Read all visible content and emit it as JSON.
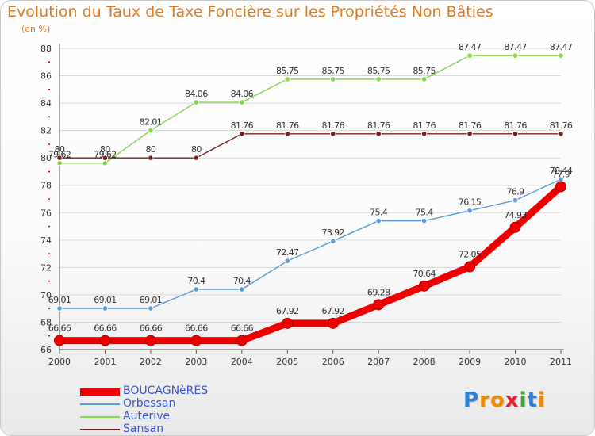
{
  "header": {
    "title": "Evolution du Taux de Taxe Foncière sur les Propriétés Non Bâties",
    "units": "(en %)"
  },
  "chart_data": {
    "type": "line",
    "title": "Evolution du Taux de Taxe Foncière sur les Propriétés Non Bâties",
    "ylabel": "(en %)",
    "xlabel": "",
    "categories": [
      "2000",
      "2001",
      "2002",
      "2003",
      "2004",
      "2005",
      "2006",
      "2007",
      "2008",
      "2009",
      "2010",
      "2011"
    ],
    "ylim": [
      66,
      88
    ],
    "yticks": [
      "66",
      "68",
      "70",
      "72",
      "74",
      "76",
      "78",
      "80",
      "82",
      "84",
      "86",
      "88"
    ],
    "grid": "horizontal",
    "legend_position": "bottom-left",
    "series": [
      {
        "name": "BOUCAGNèRES",
        "color": "#ee0000",
        "emphasis": true,
        "values": [
          66.66,
          66.66,
          66.66,
          66.66,
          66.66,
          67.92,
          67.92,
          69.28,
          70.64,
          72.05,
          74.93,
          77.9
        ],
        "labels": [
          "66.66",
          "66.66",
          "66.66",
          "66.66",
          "66.66",
          "67.92",
          "67.92",
          "69.28",
          "70.64",
          "72.05",
          "74.93",
          "77.9"
        ]
      },
      {
        "name": "Orbessan",
        "color": "#5b9bd5",
        "values": [
          69.01,
          69.01,
          69.01,
          70.4,
          70.4,
          72.47,
          73.92,
          75.4,
          75.4,
          76.15,
          76.9,
          78.44
        ],
        "labels": [
          "69.01",
          "69.01",
          "69.01",
          "70.4",
          "70.4",
          "72.47",
          "73.92",
          "75.4",
          "75.4",
          "76.15",
          "76.9",
          "78.44"
        ]
      },
      {
        "name": "Auterive",
        "color": "#84d84a",
        "values": [
          79.62,
          79.62,
          82.01,
          84.06,
          84.06,
          85.75,
          85.75,
          85.75,
          85.75,
          87.47,
          87.47,
          87.47
        ],
        "labels": [
          "79.62",
          "79.62",
          "82.01",
          "84.06",
          "84.06",
          "85.75",
          "85.75",
          "85.75",
          "85.75",
          "87.47",
          "87.47",
          "87.47"
        ]
      },
      {
        "name": "Sansan",
        "color": "#7a1f1f",
        "values": [
          80,
          80,
          80,
          80,
          81.76,
          81.76,
          81.76,
          81.76,
          81.76,
          81.76,
          81.76,
          81.76
        ],
        "labels": [
          "80",
          "80",
          "80",
          "80",
          "81.76",
          "81.76",
          "81.76",
          "81.76",
          "81.76",
          "81.76",
          "81.76",
          "81.76"
        ]
      }
    ]
  },
  "logo": {
    "text": "Proxiti",
    "letters": [
      {
        "ch": "P",
        "color": "#2d7fd3"
      },
      {
        "ch": "r",
        "color": "#f08a00"
      },
      {
        "ch": "o",
        "color": "#f08a00"
      },
      {
        "ch": "x",
        "color": "#e8202e"
      },
      {
        "ch": "i",
        "color": "#3aa635"
      },
      {
        "ch": "t",
        "color": "#2d7fd3"
      },
      {
        "ch": "i",
        "color": "#f08a00"
      }
    ]
  }
}
